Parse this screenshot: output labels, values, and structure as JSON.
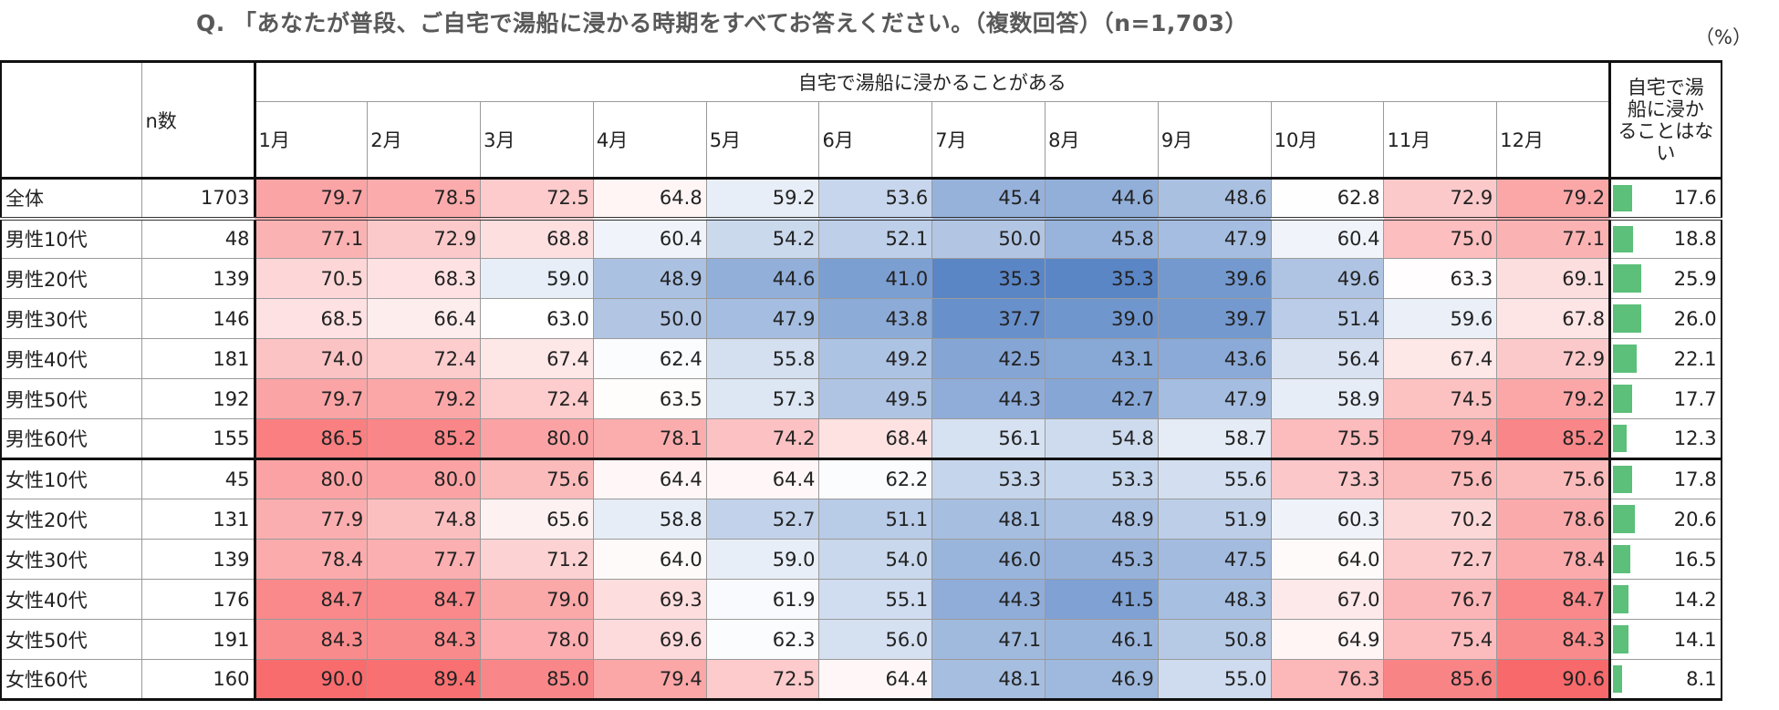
{
  "title": "Q. 「あなたが普段、ご自宅で湯船に浸かる時期をすべてお答えください。（複数回答）（n=1,703）",
  "unit": "（%）",
  "chart_data": {
    "type": "table",
    "group_header": "自宅で湯船に浸かることがある",
    "n_header": "n数",
    "never_header": [
      "自宅で湯",
      "船に浸か",
      "ることはな",
      "い"
    ],
    "months": [
      "1月",
      "2月",
      "3月",
      "4月",
      "5月",
      "6月",
      "7月",
      "8月",
      "9月",
      "10月",
      "11月",
      "12月"
    ],
    "color_low": "#5a86c6",
    "color_mid": "#ffffff",
    "color_high": "#f8696b",
    "bar_color": "#5cbf7a",
    "rows": [
      {
        "label": "全体",
        "n": "1703",
        "values": [
          79.7,
          78.5,
          72.5,
          64.8,
          59.2,
          53.6,
          45.4,
          44.6,
          48.6,
          62.8,
          72.9,
          79.2
        ],
        "never": 17.6
      },
      {
        "label": "男性10代",
        "n": "48",
        "values": [
          77.1,
          72.9,
          68.8,
          60.4,
          54.2,
          52.1,
          50.0,
          45.8,
          47.9,
          60.4,
          75.0,
          77.1
        ],
        "never": 18.8
      },
      {
        "label": "男性20代",
        "n": "139",
        "values": [
          70.5,
          68.3,
          59.0,
          48.9,
          44.6,
          41.0,
          35.3,
          35.3,
          39.6,
          49.6,
          63.3,
          69.1
        ],
        "never": 25.9
      },
      {
        "label": "男性30代",
        "n": "146",
        "values": [
          68.5,
          66.4,
          63.0,
          50.0,
          47.9,
          43.8,
          37.7,
          39.0,
          39.7,
          51.4,
          59.6,
          67.8
        ],
        "never": 26.0
      },
      {
        "label": "男性40代",
        "n": "181",
        "values": [
          74.0,
          72.4,
          67.4,
          62.4,
          55.8,
          49.2,
          42.5,
          43.1,
          43.6,
          56.4,
          67.4,
          72.9
        ],
        "never": 22.1
      },
      {
        "label": "男性50代",
        "n": "192",
        "values": [
          79.7,
          79.2,
          72.4,
          63.5,
          57.3,
          49.5,
          44.3,
          42.7,
          47.9,
          58.9,
          74.5,
          79.2
        ],
        "never": 17.7
      },
      {
        "label": "男性60代",
        "n": "155",
        "values": [
          86.5,
          85.2,
          80.0,
          78.1,
          74.2,
          68.4,
          56.1,
          54.8,
          58.7,
          75.5,
          79.4,
          85.2
        ],
        "never": 12.3
      },
      {
        "label": "女性10代",
        "n": "45",
        "values": [
          80.0,
          80.0,
          75.6,
          64.4,
          64.4,
          62.2,
          53.3,
          53.3,
          55.6,
          73.3,
          75.6,
          75.6
        ],
        "never": 17.8
      },
      {
        "label": "女性20代",
        "n": "131",
        "values": [
          77.9,
          74.8,
          65.6,
          58.8,
          52.7,
          51.1,
          48.1,
          48.9,
          51.9,
          60.3,
          70.2,
          78.6
        ],
        "never": 20.6
      },
      {
        "label": "女性30代",
        "n": "139",
        "values": [
          78.4,
          77.7,
          71.2,
          64.0,
          59.0,
          54.0,
          46.0,
          45.3,
          47.5,
          64.0,
          72.7,
          78.4
        ],
        "never": 16.5
      },
      {
        "label": "女性40代",
        "n": "176",
        "values": [
          84.7,
          84.7,
          79.0,
          69.3,
          61.9,
          55.1,
          44.3,
          41.5,
          48.3,
          67.0,
          76.7,
          84.7
        ],
        "never": 14.2
      },
      {
        "label": "女性50代",
        "n": "191",
        "values": [
          84.3,
          84.3,
          78.0,
          69.6,
          62.3,
          56.0,
          47.1,
          46.1,
          50.8,
          64.9,
          75.4,
          84.3
        ],
        "never": 14.1
      },
      {
        "label": "女性60代",
        "n": "160",
        "values": [
          90.0,
          89.4,
          85.0,
          79.4,
          72.5,
          64.4,
          48.1,
          46.9,
          55.0,
          76.3,
          85.6,
          90.6
        ],
        "never": 8.1
      }
    ]
  }
}
